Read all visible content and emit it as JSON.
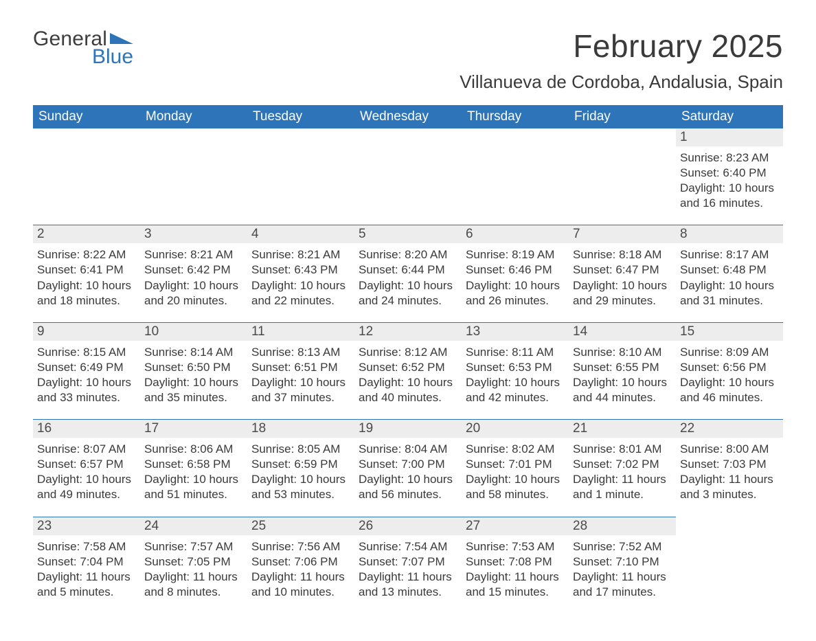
{
  "logo": {
    "text1": "General",
    "text2": "Blue",
    "tri_color": "#2d74b8"
  },
  "header": {
    "month_title": "February 2025",
    "location": "Villanueva de Cordoba, Andalusia, Spain"
  },
  "calendar": {
    "header_bg": "#2d74b8",
    "header_fg": "#ffffff",
    "daynum_bg": "#ededed",
    "daynum_border": "#2d74b8",
    "text_color": "#3a3a3a",
    "days_of_week": [
      "Sunday",
      "Monday",
      "Tuesday",
      "Wednesday",
      "Thursday",
      "Friday",
      "Saturday"
    ],
    "weeks": [
      [
        null,
        null,
        null,
        null,
        null,
        null,
        {
          "n": "1",
          "sunrise": "8:23 AM",
          "sunset": "6:40 PM",
          "daylight": "10 hours and 16 minutes."
        }
      ],
      [
        {
          "n": "2",
          "sunrise": "8:22 AM",
          "sunset": "6:41 PM",
          "daylight": "10 hours and 18 minutes."
        },
        {
          "n": "3",
          "sunrise": "8:21 AM",
          "sunset": "6:42 PM",
          "daylight": "10 hours and 20 minutes."
        },
        {
          "n": "4",
          "sunrise": "8:21 AM",
          "sunset": "6:43 PM",
          "daylight": "10 hours and 22 minutes."
        },
        {
          "n": "5",
          "sunrise": "8:20 AM",
          "sunset": "6:44 PM",
          "daylight": "10 hours and 24 minutes."
        },
        {
          "n": "6",
          "sunrise": "8:19 AM",
          "sunset": "6:46 PM",
          "daylight": "10 hours and 26 minutes."
        },
        {
          "n": "7",
          "sunrise": "8:18 AM",
          "sunset": "6:47 PM",
          "daylight": "10 hours and 29 minutes."
        },
        {
          "n": "8",
          "sunrise": "8:17 AM",
          "sunset": "6:48 PM",
          "daylight": "10 hours and 31 minutes."
        }
      ],
      [
        {
          "n": "9",
          "sunrise": "8:15 AM",
          "sunset": "6:49 PM",
          "daylight": "10 hours and 33 minutes."
        },
        {
          "n": "10",
          "sunrise": "8:14 AM",
          "sunset": "6:50 PM",
          "daylight": "10 hours and 35 minutes."
        },
        {
          "n": "11",
          "sunrise": "8:13 AM",
          "sunset": "6:51 PM",
          "daylight": "10 hours and 37 minutes."
        },
        {
          "n": "12",
          "sunrise": "8:12 AM",
          "sunset": "6:52 PM",
          "daylight": "10 hours and 40 minutes."
        },
        {
          "n": "13",
          "sunrise": "8:11 AM",
          "sunset": "6:53 PM",
          "daylight": "10 hours and 42 minutes."
        },
        {
          "n": "14",
          "sunrise": "8:10 AM",
          "sunset": "6:55 PM",
          "daylight": "10 hours and 44 minutes."
        },
        {
          "n": "15",
          "sunrise": "8:09 AM",
          "sunset": "6:56 PM",
          "daylight": "10 hours and 46 minutes."
        }
      ],
      [
        {
          "n": "16",
          "sunrise": "8:07 AM",
          "sunset": "6:57 PM",
          "daylight": "10 hours and 49 minutes."
        },
        {
          "n": "17",
          "sunrise": "8:06 AM",
          "sunset": "6:58 PM",
          "daylight": "10 hours and 51 minutes."
        },
        {
          "n": "18",
          "sunrise": "8:05 AM",
          "sunset": "6:59 PM",
          "daylight": "10 hours and 53 minutes."
        },
        {
          "n": "19",
          "sunrise": "8:04 AM",
          "sunset": "7:00 PM",
          "daylight": "10 hours and 56 minutes."
        },
        {
          "n": "20",
          "sunrise": "8:02 AM",
          "sunset": "7:01 PM",
          "daylight": "10 hours and 58 minutes."
        },
        {
          "n": "21",
          "sunrise": "8:01 AM",
          "sunset": "7:02 PM",
          "daylight": "11 hours and 1 minute."
        },
        {
          "n": "22",
          "sunrise": "8:00 AM",
          "sunset": "7:03 PM",
          "daylight": "11 hours and 3 minutes."
        }
      ],
      [
        {
          "n": "23",
          "sunrise": "7:58 AM",
          "sunset": "7:04 PM",
          "daylight": "11 hours and 5 minutes."
        },
        {
          "n": "24",
          "sunrise": "7:57 AM",
          "sunset": "7:05 PM",
          "daylight": "11 hours and 8 minutes."
        },
        {
          "n": "25",
          "sunrise": "7:56 AM",
          "sunset": "7:06 PM",
          "daylight": "11 hours and 10 minutes."
        },
        {
          "n": "26",
          "sunrise": "7:54 AM",
          "sunset": "7:07 PM",
          "daylight": "11 hours and 13 minutes."
        },
        {
          "n": "27",
          "sunrise": "7:53 AM",
          "sunset": "7:08 PM",
          "daylight": "11 hours and 15 minutes."
        },
        {
          "n": "28",
          "sunrise": "7:52 AM",
          "sunset": "7:10 PM",
          "daylight": "11 hours and 17 minutes."
        },
        null
      ]
    ],
    "labels": {
      "sunrise": "Sunrise: ",
      "sunset": "Sunset: ",
      "daylight": "Daylight: "
    }
  }
}
